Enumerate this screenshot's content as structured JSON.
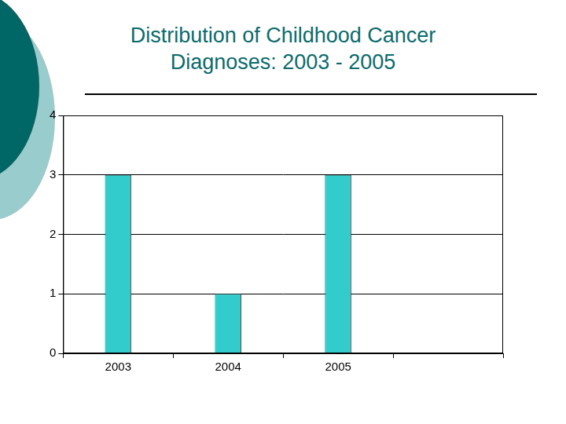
{
  "chart_data": {
    "type": "bar",
    "title": "Distribution of Childhood Cancer Diagnoses: 2003 - 2005",
    "categories": [
      "2003",
      "2004",
      "2005",
      null
    ],
    "values": [
      3,
      1,
      3,
      null
    ],
    "color": "#33cccc",
    "ylim": [
      0,
      4
    ],
    "yticks": [
      0,
      1,
      2,
      3,
      4
    ],
    "grid": true
  }
}
